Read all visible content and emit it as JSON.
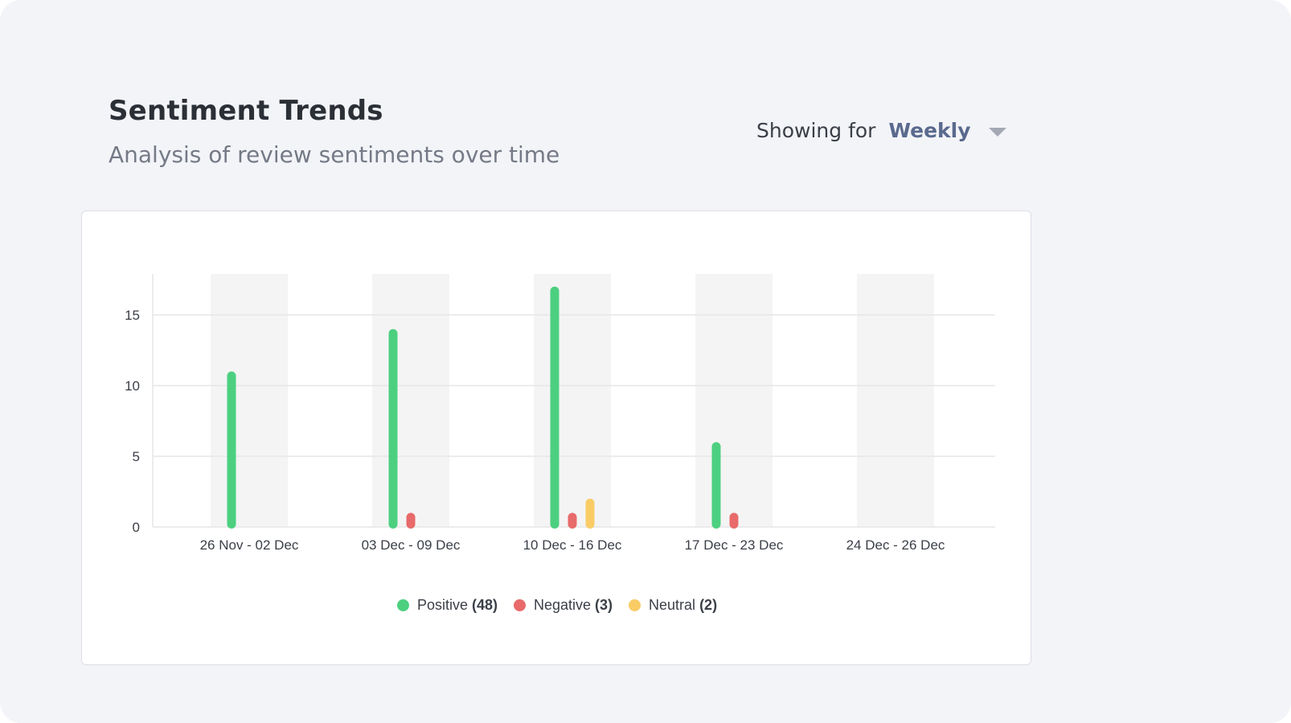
{
  "header": {
    "title": "Sentiment Trends",
    "subtitle": "Analysis of review sentiments over time",
    "filter_label": "Showing for",
    "filter_value": "Weekly"
  },
  "chart_data": {
    "type": "bar",
    "title": "",
    "xlabel": "",
    "ylabel": "",
    "ylim": [
      0,
      18
    ],
    "yticks": [
      0,
      5,
      10,
      15
    ],
    "grid": true,
    "legend_position": "bottom-center",
    "categories": [
      "26 Nov - 02 Dec",
      "03 Dec - 09 Dec",
      "10 Dec - 16 Dec",
      "17 Dec - 23 Dec",
      "24 Dec - 26 Dec"
    ],
    "series": [
      {
        "name": "Positive",
        "total": "(48)",
        "color": "#4cd080",
        "values": [
          11,
          14,
          17,
          6,
          0
        ]
      },
      {
        "name": "Negative",
        "total": "(3)",
        "color": "#e86a6a",
        "values": [
          0,
          1,
          1,
          1,
          0
        ]
      },
      {
        "name": "Neutral",
        "total": "(2)",
        "color": "#f9cc66",
        "values": [
          0,
          0,
          2,
          0,
          0
        ]
      }
    ]
  }
}
